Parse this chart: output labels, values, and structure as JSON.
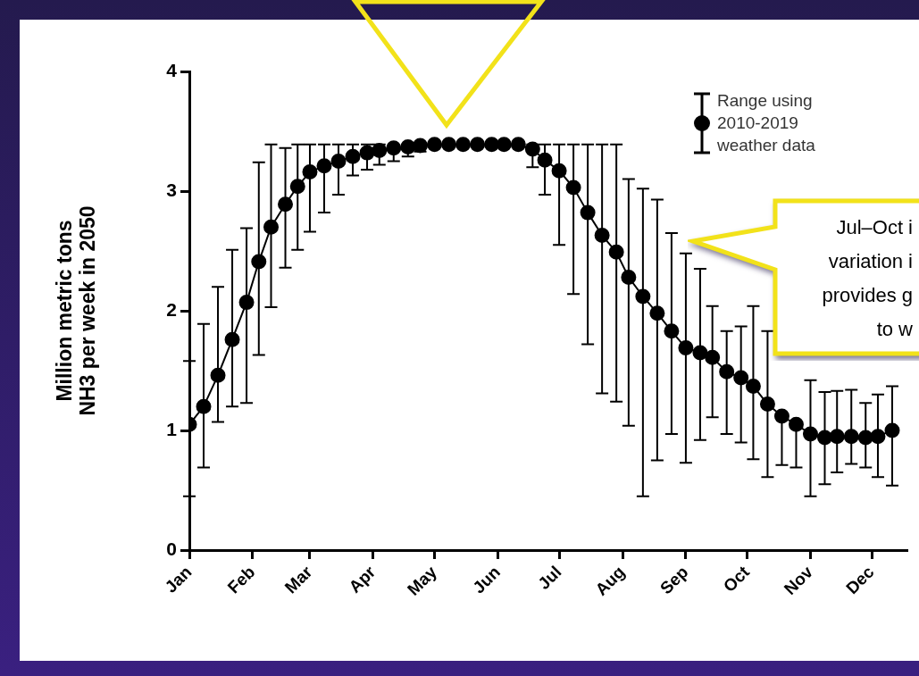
{
  "chart_data": {
    "type": "line",
    "ylabel": "Million metric tons\nNH3 per week in 2050",
    "x": [
      "--01-01",
      "--01-08",
      "--01-15",
      "--01-22",
      "--01-29",
      "--02-04",
      "--02-10",
      "--02-17",
      "--02-23",
      "--03-01",
      "--03-08",
      "--03-15",
      "--03-22",
      "--03-29",
      "--04-04",
      "--04-11",
      "--04-18",
      "--04-24",
      "--05-01",
      "--05-08",
      "--05-15",
      "--05-22",
      "--05-29",
      "--06-04",
      "--06-11",
      "--06-18",
      "--06-24",
      "--07-01",
      "--07-08",
      "--07-15",
      "--07-22",
      "--07-29",
      "--08-04",
      "--08-11",
      "--08-18",
      "--08-25",
      "--09-01",
      "--09-08",
      "--09-14",
      "--09-21",
      "--09-28",
      "--10-04",
      "--10-11",
      "--10-18",
      "--10-25",
      "--11-01",
      "--11-08",
      "--11-14",
      "--11-21",
      "--11-28",
      "--12-04",
      "--12-11"
    ],
    "xlim": [
      "--01-01",
      "--12-18"
    ],
    "xticks": [
      {
        "value": "--01-01",
        "label": "Jan"
      },
      {
        "value": "--02-01",
        "label": "Feb"
      },
      {
        "value": "--03-01",
        "label": "Mar"
      },
      {
        "value": "--04-01",
        "label": "Apr"
      },
      {
        "value": "--05-01",
        "label": "May"
      },
      {
        "value": "--06-01",
        "label": "Jun"
      },
      {
        "value": "--07-01",
        "label": "Jul"
      },
      {
        "value": "--08-01",
        "label": "Aug"
      },
      {
        "value": "--09-01",
        "label": "Sep"
      },
      {
        "value": "--10-01",
        "label": "Oct"
      },
      {
        "value": "--11-01",
        "label": "Nov"
      },
      {
        "value": "--12-01",
        "label": "Dec"
      }
    ],
    "ylim": [
      0,
      4
    ],
    "yticks": [
      0,
      1,
      2,
      3,
      4
    ],
    "grid": false,
    "legend": "top right",
    "marker": "circle",
    "line_style": "solid",
    "series": [
      {
        "name": "Range using 2010-2019 weather data",
        "color": "#000000",
        "values": [
          1.05,
          1.2,
          1.46,
          1.76,
          2.07,
          2.41,
          2.7,
          2.89,
          3.04,
          3.16,
          3.21,
          3.25,
          3.29,
          3.32,
          3.34,
          3.36,
          3.37,
          3.38,
          3.39,
          3.39,
          3.39,
          3.39,
          3.39,
          3.39,
          3.39,
          3.35,
          3.26,
          3.17,
          3.03,
          2.82,
          2.63,
          2.49,
          2.28,
          2.12,
          1.98,
          1.83,
          1.69,
          1.65,
          1.61,
          1.49,
          1.44,
          1.37,
          1.22,
          1.12,
          1.05,
          0.97,
          0.94,
          0.95,
          0.95,
          0.94,
          0.95,
          1.0
        ],
        "errors": [
          [
            0.45,
            1.58
          ],
          [
            0.69,
            1.89
          ],
          [
            1.07,
            2.2
          ],
          [
            1.2,
            2.51
          ],
          [
            1.23,
            2.69
          ],
          [
            1.63,
            3.24
          ],
          [
            2.03,
            3.39
          ],
          [
            2.36,
            3.36
          ],
          [
            2.51,
            3.39
          ],
          [
            2.66,
            3.39
          ],
          [
            2.82,
            3.39
          ],
          [
            2.97,
            3.39
          ],
          [
            3.13,
            3.39
          ],
          [
            3.18,
            3.39
          ],
          [
            3.22,
            3.39
          ],
          [
            3.25,
            3.36
          ],
          [
            3.29,
            3.37
          ],
          [
            3.33,
            3.39
          ],
          null,
          null,
          null,
          null,
          null,
          null,
          null,
          [
            3.2,
            3.39
          ],
          [
            2.97,
            3.39
          ],
          [
            2.55,
            3.39
          ],
          [
            2.14,
            3.39
          ],
          [
            1.72,
            3.39
          ],
          [
            1.31,
            3.39
          ],
          [
            1.24,
            3.39
          ],
          [
            1.04,
            3.1
          ],
          [
            0.45,
            3.02
          ],
          [
            0.75,
            2.93
          ],
          [
            0.97,
            2.65
          ],
          [
            0.73,
            2.48
          ],
          [
            0.92,
            2.35
          ],
          [
            1.11,
            2.04
          ],
          [
            0.97,
            1.83
          ],
          [
            0.9,
            1.87
          ],
          [
            0.76,
            2.04
          ],
          [
            0.61,
            1.83
          ],
          [
            0.71,
            1.12
          ],
          [
            0.69,
            1.05
          ],
          [
            0.45,
            1.42
          ],
          [
            0.55,
            1.32
          ],
          [
            0.65,
            1.33
          ],
          [
            0.72,
            1.34
          ],
          [
            0.69,
            1.23
          ],
          [
            0.61,
            1.3
          ],
          [
            0.54,
            1.37
          ]
        ]
      }
    ],
    "annotations": [
      "Jul–Oct i\nvariation i\nprovides g\nto w"
    ]
  }
}
